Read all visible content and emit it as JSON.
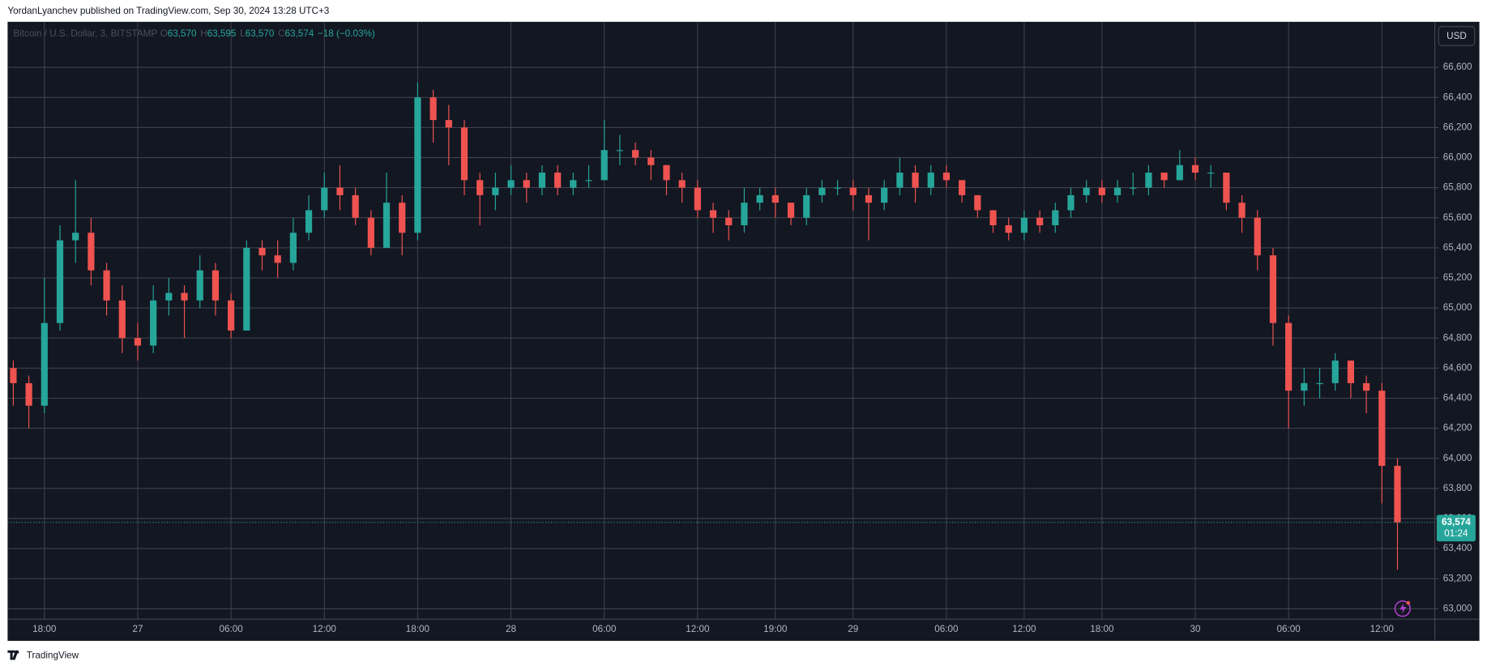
{
  "header": "YordanLyanchev published on TradingView.com, Sep 30, 2024 13:28 UTC+3",
  "footer": "TradingView",
  "chart_data": {
    "type": "candlestick",
    "symbol": "Bitcoin / U.S. Dollar, 3, BITSTAMP",
    "ohlc": [
      {
        "key": "O",
        "value": "63,570"
      },
      {
        "key": "H",
        "value": "63,595"
      },
      {
        "key": "L",
        "value": "63,570"
      },
      {
        "key": "C",
        "value": "63,574"
      }
    ],
    "change": "−18 (−0.03%)",
    "currency": "USD",
    "up_color": "#26a69a",
    "down_color": "#ef5350",
    "grid": true,
    "categories": [
      null,
      null,
      "18:00",
      null,
      null,
      null,
      null,
      null,
      "27",
      null,
      null,
      null,
      null,
      null,
      "06:00",
      null,
      null,
      null,
      null,
      null,
      "12:00",
      null,
      null,
      null,
      null,
      null,
      "18:00",
      null,
      null,
      null,
      null,
      null,
      "28",
      null,
      null,
      null,
      null,
      null,
      "06:00",
      null,
      null,
      null,
      null,
      null,
      "12:00",
      null,
      null,
      null,
      null,
      "19:00",
      null,
      null,
      null,
      null,
      "29",
      null,
      null,
      null,
      null,
      null,
      "06:00",
      null,
      null,
      null,
      null,
      "12:00",
      null,
      null,
      null,
      null,
      "18:00",
      null,
      null,
      null,
      null,
      null,
      "30",
      null,
      null,
      null,
      null,
      null,
      "06:00",
      null,
      null,
      null,
      null,
      null,
      "12:00",
      null
    ],
    "open": [
      64600,
      64500,
      64350,
      64900,
      65450,
      65500,
      65250,
      65050,
      64800,
      64750,
      65050,
      65100,
      65050,
      65250,
      65050,
      64850,
      65400,
      65350,
      65300,
      65500,
      65650,
      65800,
      65750,
      65600,
      65400,
      65700,
      65500,
      66400,
      66250,
      66200,
      65850,
      65750,
      65800,
      65850,
      65800,
      65900,
      65800,
      65850,
      65850,
      66050,
      66050,
      66000,
      65950,
      65850,
      65800,
      65650,
      65600,
      65550,
      65700,
      65750,
      65700,
      65600,
      65750,
      65800,
      65800,
      65750,
      65700,
      65800,
      65900,
      65800,
      65900,
      65850,
      65750,
      65650,
      65550,
      65500,
      65600,
      65550,
      65650,
      65750,
      65800,
      65750,
      65800,
      65800,
      65900,
      65850,
      65950,
      65900,
      65900,
      65700,
      65600,
      65350,
      64900,
      64450,
      64500,
      64500,
      64650,
      64500,
      64450,
      63950
    ],
    "high": [
      64650,
      64550,
      65200,
      65550,
      65850,
      65600,
      65300,
      65150,
      64900,
      65150,
      65200,
      65150,
      65350,
      65300,
      65100,
      65450,
      65450,
      65450,
      65600,
      65750,
      65900,
      65950,
      65800,
      65650,
      65900,
      65750,
      66500,
      66450,
      66350,
      66250,
      65900,
      65900,
      65950,
      65900,
      65950,
      65950,
      65900,
      65950,
      66250,
      66150,
      66100,
      66050,
      65950,
      65900,
      65850,
      65700,
      65650,
      65800,
      65800,
      65800,
      65700,
      65800,
      65850,
      65850,
      65850,
      65800,
      65850,
      66000,
      65950,
      65950,
      65950,
      65850,
      65750,
      65650,
      65600,
      65650,
      65650,
      65700,
      65800,
      65850,
      65850,
      65850,
      65900,
      65950,
      65900,
      66050,
      66000,
      65950,
      65900,
      65750,
      65650,
      65400,
      64950,
      64600,
      64600,
      64700,
      64650,
      64550,
      64500,
      64000
    ],
    "low": [
      64350,
      64200,
      64300,
      64850,
      65300,
      65150,
      64950,
      64700,
      64650,
      64700,
      64950,
      64800,
      65000,
      64950,
      64800,
      64850,
      65250,
      65200,
      65250,
      65450,
      65600,
      65650,
      65550,
      65350,
      65400,
      65350,
      65450,
      66100,
      65950,
      65750,
      65550,
      65650,
      65750,
      65700,
      65750,
      65750,
      65750,
      65800,
      65850,
      65950,
      65950,
      65850,
      65750,
      65700,
      65600,
      65500,
      65450,
      65500,
      65650,
      65600,
      65550,
      65550,
      65700,
      65750,
      65650,
      65450,
      65650,
      65750,
      65700,
      65750,
      65800,
      65700,
      65600,
      65500,
      65450,
      65450,
      65500,
      65500,
      65600,
      65700,
      65700,
      65700,
      65750,
      65750,
      65800,
      65850,
      65850,
      65800,
      65650,
      65500,
      65250,
      64750,
      64200,
      64350,
      64400,
      64450,
      64400,
      64300,
      63700,
      63260
    ],
    "close": [
      64500,
      64350,
      64900,
      65450,
      65500,
      65250,
      65050,
      64800,
      64750,
      65050,
      65100,
      65050,
      65250,
      65050,
      64850,
      65400,
      65350,
      65300,
      65500,
      65650,
      65800,
      65750,
      65600,
      65400,
      65700,
      65500,
      66400,
      66250,
      66200,
      65850,
      65750,
      65800,
      65850,
      65800,
      65900,
      65800,
      65850,
      65850,
      66050,
      66050,
      66000,
      65950,
      65850,
      65800,
      65650,
      65600,
      65550,
      65700,
      65750,
      65700,
      65600,
      65750,
      65800,
      65800,
      65750,
      65700,
      65800,
      65900,
      65800,
      65900,
      65850,
      65750,
      65650,
      65550,
      65500,
      65600,
      65550,
      65650,
      65750,
      65800,
      65750,
      65800,
      65800,
      65900,
      65850,
      65950,
      65900,
      65900,
      65700,
      65600,
      65350,
      64900,
      64450,
      64500,
      64500,
      64650,
      64500,
      64450,
      63950,
      63574
    ],
    "ylim": [
      62931,
      66903
    ],
    "yticks": [
      {
        "value": 63000,
        "label": "63,000"
      },
      {
        "value": 63200,
        "label": "63,200"
      },
      {
        "value": 63400,
        "label": "63,400"
      },
      {
        "value": 63600,
        "label": "63,600"
      },
      {
        "value": 63800,
        "label": "63,800"
      },
      {
        "value": 64000,
        "label": "64,000"
      },
      {
        "value": 64200,
        "label": "64,200"
      },
      {
        "value": 64400,
        "label": "64,400"
      },
      {
        "value": 64600,
        "label": "64,600"
      },
      {
        "value": 64800,
        "label": "64,800"
      },
      {
        "value": 65000,
        "label": "65,000"
      },
      {
        "value": 65200,
        "label": "65,200"
      },
      {
        "value": 65400,
        "label": "65,400"
      },
      {
        "value": 65600,
        "label": "65,600"
      },
      {
        "value": 65800,
        "label": "65,800"
      },
      {
        "value": 66000,
        "label": "66,000"
      },
      {
        "value": 66200,
        "label": "66,200"
      },
      {
        "value": 66400,
        "label": "66,400"
      },
      {
        "value": 66600,
        "label": "66,600"
      }
    ],
    "last_price": {
      "value": 63574,
      "label": "63,574"
    },
    "countdown": "01:24"
  }
}
